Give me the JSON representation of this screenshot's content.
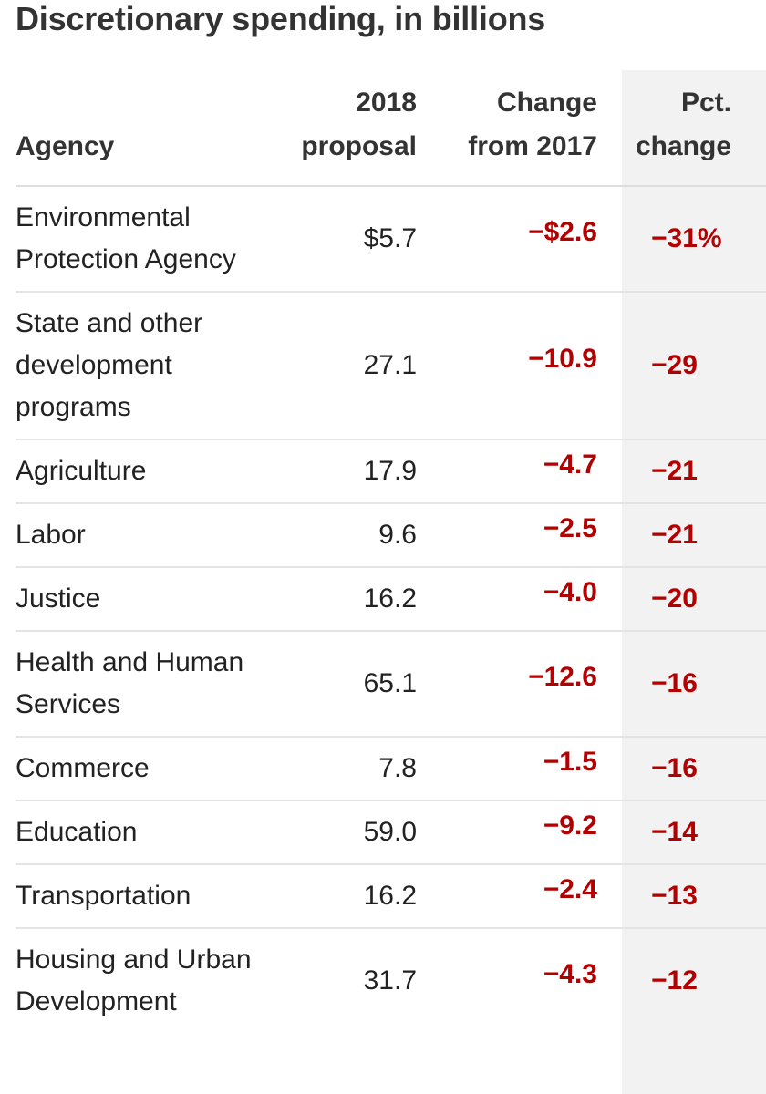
{
  "title": "Discretionary spending, in billions",
  "table": {
    "headers": {
      "agency": "Agency",
      "proposal_line1": "2018",
      "proposal_line2": "proposal",
      "change_line1": "Change",
      "change_line2": "from 2017",
      "pct_line1": "Pct.",
      "pct_line2": "change"
    },
    "rows": [
      {
        "agency": "Environmental Protection Agency",
        "proposal": "$5.7",
        "change": "−$2.6",
        "pct": "−31%"
      },
      {
        "agency": "State and other development programs",
        "proposal": "27.1",
        "change": "−10.9",
        "pct": "−29"
      },
      {
        "agency": "Agriculture",
        "proposal": "17.9",
        "change": "−4.7",
        "pct": "−21"
      },
      {
        "agency": "Labor",
        "proposal": "9.6",
        "change": "−2.5",
        "pct": "−21"
      },
      {
        "agency": "Justice",
        "proposal": "16.2",
        "change": "−4.0",
        "pct": "−20"
      },
      {
        "agency": "Health and Human Services",
        "proposal": "65.1",
        "change": "−12.6",
        "pct": "−16"
      },
      {
        "agency": "Commerce",
        "proposal": "7.8",
        "change": "−1.5",
        "pct": "−16"
      },
      {
        "agency": "Education",
        "proposal": "59.0",
        "change": "−9.2",
        "pct": "−14"
      },
      {
        "agency": "Transportation",
        "proposal": "16.2",
        "change": "−2.4",
        "pct": "−13"
      },
      {
        "agency": "Housing and Urban Development",
        "proposal": "31.7",
        "change": "−4.3",
        "pct": "−12"
      }
    ]
  },
  "colors": {
    "negative": "#b30000",
    "highlight_column": "#f2f2f2"
  },
  "chart_data": {
    "type": "table",
    "title": "Discretionary spending, in billions",
    "columns": [
      "Agency",
      "2018 proposal",
      "Change from 2017",
      "Pct. change"
    ],
    "rows": [
      [
        "Environmental Protection Agency",
        5.7,
        -2.6,
        -31
      ],
      [
        "State and other development programs",
        27.1,
        -10.9,
        -29
      ],
      [
        "Agriculture",
        17.9,
        -4.7,
        -21
      ],
      [
        "Labor",
        9.6,
        -2.5,
        -21
      ],
      [
        "Justice",
        16.2,
        -4.0,
        -20
      ],
      [
        "Health and Human Services",
        65.1,
        -12.6,
        -16
      ],
      [
        "Commerce",
        7.8,
        -1.5,
        -16
      ],
      [
        "Education",
        59.0,
        -9.2,
        -14
      ],
      [
        "Transportation",
        16.2,
        -2.4,
        -13
      ],
      [
        "Housing and Urban Development",
        31.7,
        -4.3,
        -12
      ]
    ]
  }
}
